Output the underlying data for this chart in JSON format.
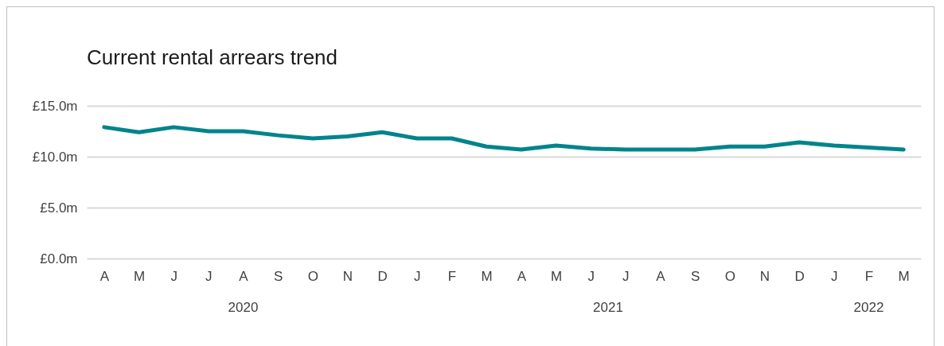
{
  "chart_data": {
    "type": "line",
    "title": "Current rental arrears trend",
    "categories": [
      "A",
      "M",
      "J",
      "J",
      "A",
      "S",
      "O",
      "N",
      "D",
      "J",
      "F",
      "M",
      "A",
      "M",
      "J",
      "J",
      "A",
      "S",
      "O",
      "N",
      "D",
      "J",
      "F",
      "M"
    ],
    "values": [
      12.9,
      12.4,
      12.9,
      12.5,
      12.5,
      12.1,
      11.8,
      12.0,
      12.4,
      11.8,
      11.8,
      11.0,
      10.7,
      11.1,
      10.8,
      10.7,
      10.7,
      10.7,
      11.0,
      11.0,
      11.4,
      11.1,
      10.9,
      10.7
    ],
    "color": "#00848c",
    "ylim": [
      0,
      15
    ],
    "yticks": [
      {
        "value": 0,
        "label": "£0.0m"
      },
      {
        "value": 5,
        "label": "£5.0m"
      },
      {
        "value": 10,
        "label": "£10.0m"
      },
      {
        "value": 15,
        "label": "£15.0m"
      }
    ],
    "grid": "y",
    "line_style": "solid",
    "annotations": [
      "2020",
      "2021",
      "2022"
    ]
  }
}
